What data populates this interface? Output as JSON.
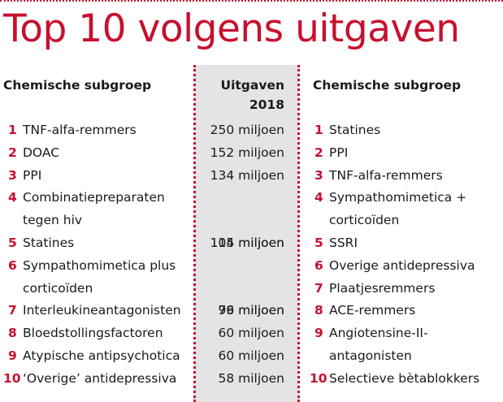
{
  "title": "Top 10 volgens uitgaven",
  "left": {
    "header": "Chemische subgroep",
    "items": [
      {
        "rank": "1",
        "lines": [
          "TNF-alfa-remmers"
        ]
      },
      {
        "rank": "2",
        "lines": [
          "DOAC"
        ]
      },
      {
        "rank": "3",
        "lines": [
          "PPI"
        ]
      },
      {
        "rank": "4",
        "lines": [
          "Combinatiepreparaten",
          "tegen hiv"
        ]
      },
      {
        "rank": "5",
        "lines": [
          "Statines"
        ]
      },
      {
        "rank": "6",
        "lines": [
          "Sympathomimetica plus",
          "corticoïden"
        ]
      },
      {
        "rank": "7",
        "lines": [
          "Interleukineantagonisten"
        ]
      },
      {
        "rank": "8",
        "lines": [
          "Bloedstollingsfactoren"
        ]
      },
      {
        "rank": "9",
        "lines": [
          "Atypische antipsychotica"
        ]
      },
      {
        "rank": "10",
        "lines": [
          "‘Overige’ antidepressiva"
        ]
      }
    ]
  },
  "middle": {
    "header_line1": "Uitgaven",
    "header_line2": "2018",
    "values": [
      "250 miljoen",
      "152 miljoen",
      "134 miljoen",
      "114 miljoen",
      "105 miljoen",
      "96 miljoen",
      "79 miljoen",
      "60 miljoen",
      "60 miljoen",
      "58 miljoen"
    ]
  },
  "right": {
    "header": "Chemische subgroep",
    "items": [
      {
        "rank": "1",
        "lines": [
          "Statines"
        ]
      },
      {
        "rank": "2",
        "lines": [
          "PPI"
        ]
      },
      {
        "rank": "3",
        "lines": [
          "TNF-alfa-remmers"
        ]
      },
      {
        "rank": "4",
        "lines": [
          "Sympathomimetica +",
          "corticoïden"
        ]
      },
      {
        "rank": "5",
        "lines": [
          "SSRI"
        ]
      },
      {
        "rank": "6",
        "lines": [
          "Overige antidepressiva"
        ]
      },
      {
        "rank": "7",
        "lines": [
          "Plaatjesremmers"
        ]
      },
      {
        "rank": "8",
        "lines": [
          "ACE-remmers"
        ]
      },
      {
        "rank": "9",
        "lines": [
          "Angiotensine-II-",
          "antagonisten"
        ]
      },
      {
        "rank": "10",
        "lines": [
          "Selectieve bètablokkers"
        ]
      }
    ]
  },
  "colors": {
    "accent": "#c8102e",
    "shade": "#e4e4e4",
    "text": "#1a1a1a"
  }
}
